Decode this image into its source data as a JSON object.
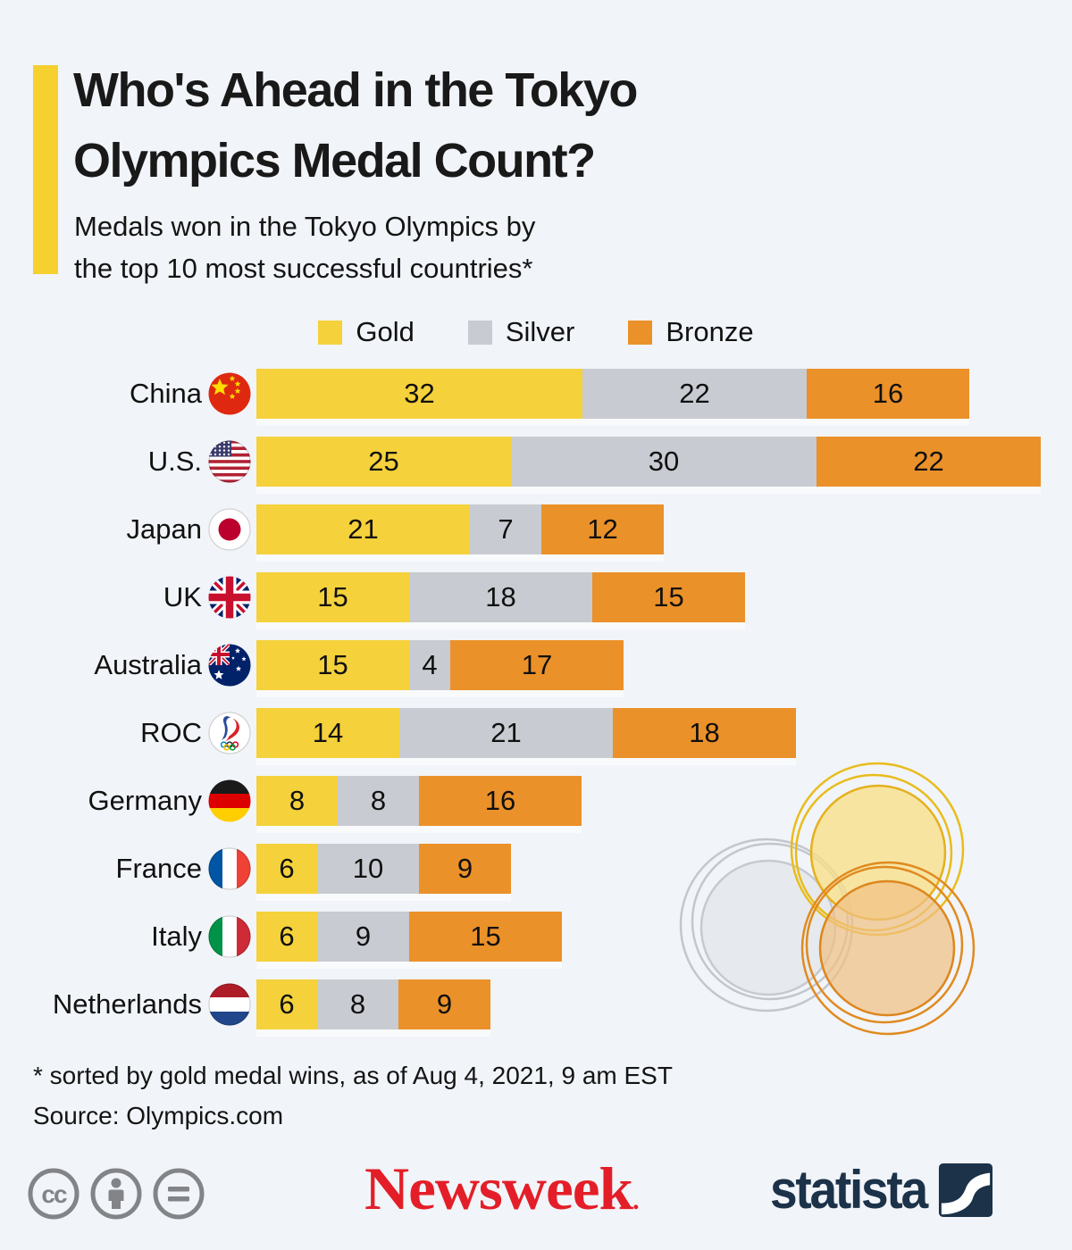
{
  "page": {
    "background": "#F1F4F8"
  },
  "header": {
    "accent_color": "#F5D02F",
    "title_line1": "Who's Ahead in the Tokyo",
    "title_line2": "Olympics Medal Count?",
    "subtitle_line1": "Medals won in the Tokyo Olympics by",
    "subtitle_line2": "the top 10 most successful countries*"
  },
  "legend": [
    {
      "label": "Gold",
      "color": "#F5D13B",
      "swatch": "gold-swatch"
    },
    {
      "label": "Silver",
      "color": "#C8CBD1",
      "swatch": "silver-swatch"
    },
    {
      "label": "Bronze",
      "color": "#EB9129",
      "swatch": "bronze-swatch"
    }
  ],
  "chart_data": {
    "type": "bar",
    "orientation": "horizontal",
    "stacked": true,
    "value_labels": "inside",
    "grid": false,
    "xlim": [
      0,
      77
    ],
    "categories": [
      "China",
      "U.S.",
      "Japan",
      "UK",
      "Australia",
      "ROC",
      "Germany",
      "France",
      "Italy",
      "Netherlands"
    ],
    "flag_icons": [
      "china-flag-icon",
      "us-flag-icon",
      "japan-flag-icon",
      "uk-flag-icon",
      "australia-flag-icon",
      "roc-flag-icon",
      "germany-flag-icon",
      "france-flag-icon",
      "italy-flag-icon",
      "netherlands-flag-icon"
    ],
    "series": [
      {
        "name": "Gold",
        "color": "#F5D13B",
        "values": [
          32,
          25,
          21,
          15,
          15,
          14,
          8,
          6,
          6,
          6
        ]
      },
      {
        "name": "Silver",
        "color": "#C8CBD1",
        "values": [
          22,
          30,
          7,
          18,
          4,
          21,
          8,
          10,
          9,
          8
        ]
      },
      {
        "name": "Bronze",
        "color": "#EB9129",
        "values": [
          16,
          22,
          12,
          15,
          17,
          18,
          16,
          9,
          15,
          9
        ]
      }
    ],
    "totals": [
      70,
      77,
      40,
      48,
      36,
      53,
      32,
      25,
      30,
      23
    ]
  },
  "footnotes": {
    "note": "* sorted by gold medal wins, as of Aug 4, 2021, 9 am EST",
    "source": "Source: Olympics.com"
  },
  "footer": {
    "license_icons": [
      "cc-icon",
      "attribution-icon",
      "equals-icon"
    ],
    "newsweek_text": "Newsweek",
    "newsweek_color": "#E31E28",
    "statista_text": "statista",
    "statista_color": "#1B3249"
  }
}
